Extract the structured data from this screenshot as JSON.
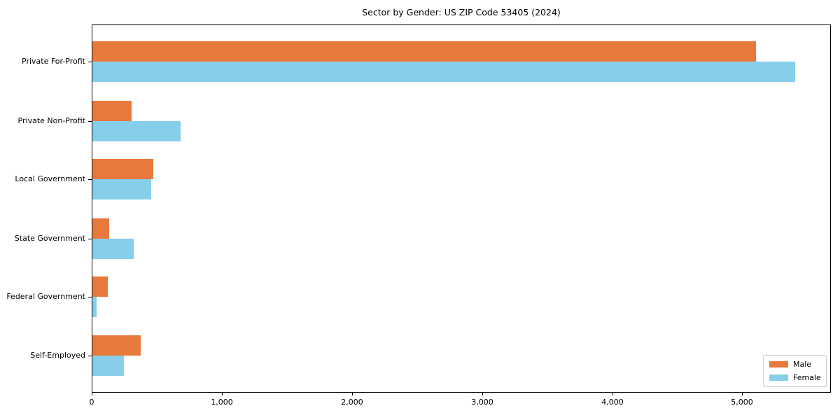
{
  "chart_data": {
    "type": "bar",
    "orientation": "horizontal",
    "title": "Sector by Gender: US ZIP Code 53405 (2024)",
    "categories": [
      "Private For-Profit",
      "Private Non-Profit",
      "Local Government",
      "State Government",
      "Federal Government",
      "Self-Employed"
    ],
    "series": [
      {
        "name": "Male",
        "color": "#E8793C",
        "values": [
          5100,
          300,
          470,
          130,
          120,
          370
        ]
      },
      {
        "name": "Female",
        "color": "#87CEEB",
        "values": [
          5400,
          680,
          450,
          320,
          30,
          240
        ]
      }
    ],
    "xlabel": "",
    "ylabel": "",
    "xlim": [
      0,
      5670
    ],
    "xticks": {
      "values": [
        0,
        1000,
        2000,
        3000,
        4000,
        5000
      ],
      "labels": [
        "0",
        "1,000",
        "2,000",
        "3,000",
        "4,000",
        "5,000"
      ]
    },
    "grid": false,
    "legend": {
      "position": "lower right",
      "entries": [
        "Male",
        "Female"
      ]
    },
    "background": "#ffffff",
    "axis_color": "#000000"
  }
}
